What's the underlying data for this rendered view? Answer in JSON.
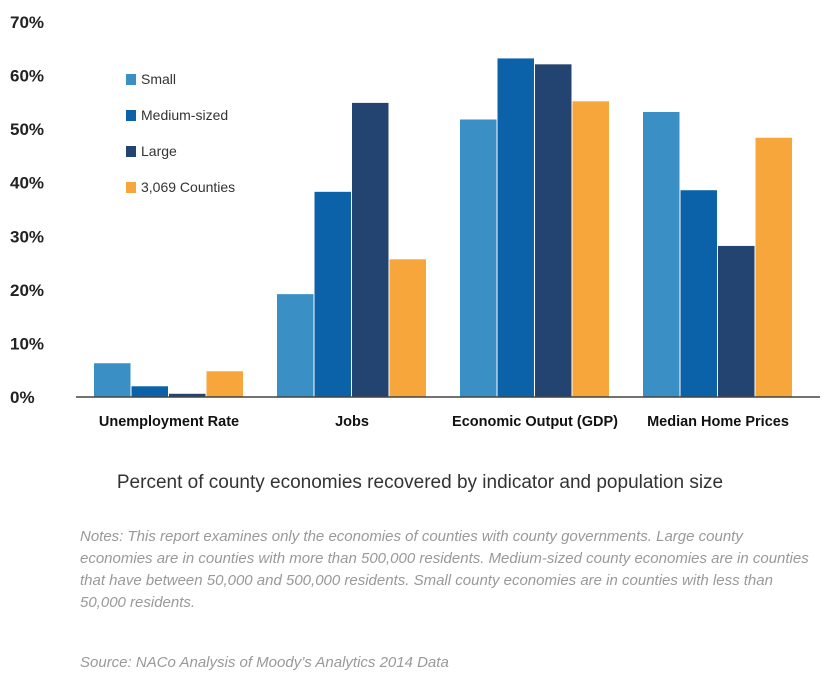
{
  "chart_data": {
    "type": "bar",
    "categories": [
      "Unemployment Rate",
      "Jobs",
      "Economic Output (GDP)",
      "Median Home Prices"
    ],
    "series": [
      {
        "name": "Small",
        "color": "#3a8fc4",
        "values": [
          6.3,
          19.2,
          51.8,
          53.2
        ]
      },
      {
        "name": "Medium-sized",
        "color": "#0b62a8",
        "values": [
          2.0,
          38.3,
          63.2,
          38.6
        ]
      },
      {
        "name": "Large",
        "color": "#234371",
        "values": [
          0.6,
          54.9,
          62.1,
          28.2
        ]
      },
      {
        "name": "3,069 Counties",
        "color": "#f7a63c",
        "values": [
          4.8,
          25.7,
          55.2,
          48.4
        ]
      }
    ],
    "ylim": [
      0,
      70
    ],
    "yticks": [
      "0%",
      "10%",
      "20%",
      "30%",
      "40%",
      "50%",
      "60%",
      "70%"
    ],
    "legend_position": "top-left",
    "grid": false
  },
  "caption": "Percent of county economies recovered by indicator and population size",
  "notes": "Notes: This report examines only the economies of counties with county governments.  Large county economies are in counties with more than 500,000 residents. Medium-sized county economies are in counties that have between 50,000 and 500,000 residents. Small county economies are in counties with less than 50,000 residents.",
  "source": "Source: NACo Analysis of Moody’s Analytics 2014 Data"
}
